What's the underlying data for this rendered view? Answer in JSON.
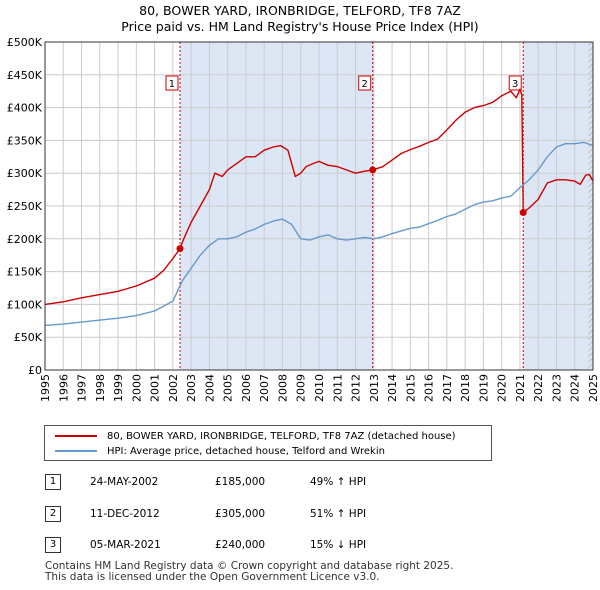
{
  "title_line1": "80, BOWER YARD, IRONBRIDGE, TELFORD, TF8 7AZ",
  "title_line2": "Price paid vs. HM Land Registry's House Price Index (HPI)",
  "colors": {
    "property": "#cc0000",
    "hpi": "#6699cc",
    "shade": "#dde6f4",
    "grid": "#cccccc"
  },
  "legend": {
    "property_label": "80, BOWER YARD, IRONBRIDGE, TELFORD, TF8 7AZ (detached house)",
    "hpi_label": "HPI: Average price, detached house, Telford and Wrekin"
  },
  "transactions": [
    {
      "num": "1",
      "date": "24-MAY-2002",
      "price": "£185,000",
      "hpi": "49% ↑ HPI",
      "x": 2002.39,
      "value": 185000
    },
    {
      "num": "2",
      "date": "11-DEC-2012",
      "price": "£305,000",
      "hpi": "51% ↑ HPI",
      "x": 2012.94,
      "value": 305000
    },
    {
      "num": "3",
      "date": "05-MAR-2021",
      "price": "£240,000",
      "hpi": "15% ↓ HPI",
      "x": 2021.18,
      "value": 240000
    }
  ],
  "footer": {
    "line1": "Contains HM Land Registry data © Crown copyright and database right 2025.",
    "line2": "This data is licensed under the Open Government Licence v3.0."
  },
  "chart_data": {
    "type": "line",
    "title": "80, BOWER YARD, IRONBRIDGE, TELFORD, TF8 7AZ",
    "subtitle": "Price paid vs. HM Land Registry's House Price Index (HPI)",
    "xlabel": "",
    "ylabel": "",
    "xlim": [
      1995,
      2025
    ],
    "ylim": [
      0,
      500000
    ],
    "y_ticks": [
      0,
      50000,
      100000,
      150000,
      200000,
      250000,
      300000,
      350000,
      400000,
      450000,
      500000
    ],
    "y_tick_labels": [
      "£0",
      "£50K",
      "£100K",
      "£150K",
      "£200K",
      "£250K",
      "£300K",
      "£350K",
      "£400K",
      "£450K",
      "£500K"
    ],
    "x_ticks": [
      1995,
      1996,
      1997,
      1998,
      1999,
      2000,
      2001,
      2002,
      2003,
      2004,
      2005,
      2006,
      2007,
      2008,
      2009,
      2010,
      2011,
      2012,
      2013,
      2014,
      2015,
      2016,
      2017,
      2018,
      2019,
      2020,
      2021,
      2022,
      2023,
      2024,
      2025
    ],
    "shaded_ranges": [
      [
        2002.39,
        2012.94
      ],
      [
        2021.18,
        2025
      ]
    ],
    "hatched_range": [
      2024.75,
      2025
    ],
    "series": [
      {
        "name": "80, BOWER YARD, IRONBRIDGE, TELFORD, TF8 7AZ (detached house)",
        "x": [
          1995,
          1996,
          1997,
          1998,
          1999,
          2000,
          2001,
          2001.5,
          2002,
          2002.39,
          2002.6,
          2003,
          2003.5,
          2004,
          2004.3,
          2004.7,
          2005,
          2005.5,
          2006,
          2006.5,
          2007,
          2007.5,
          2007.9,
          2008.3,
          2008.7,
          2009,
          2009.3,
          2009.7,
          2010,
          2010.5,
          2011,
          2011.5,
          2012,
          2012.5,
          2012.94,
          2013.5,
          2014,
          2014.5,
          2015,
          2015.5,
          2016,
          2016.5,
          2017,
          2017.5,
          2018,
          2018.5,
          2019,
          2019.5,
          2020,
          2020.5,
          2020.8,
          2021.0,
          2021.1,
          2021.18,
          2021.5,
          2022,
          2022.5,
          2023,
          2023.5,
          2024,
          2024.3,
          2024.6,
          2024.8,
          2025
        ],
        "values": [
          100000,
          104000,
          110000,
          115000,
          120000,
          128000,
          140000,
          152000,
          170000,
          185000,
          200000,
          225000,
          250000,
          275000,
          300000,
          295000,
          305000,
          315000,
          325000,
          325000,
          335000,
          340000,
          342000,
          335000,
          295000,
          300000,
          310000,
          315000,
          318000,
          312000,
          310000,
          305000,
          300000,
          303000,
          305000,
          310000,
          320000,
          330000,
          336000,
          341000,
          347000,
          352000,
          366000,
          381000,
          393000,
          400000,
          403000,
          408000,
          418000,
          425000,
          415000,
          428000,
          420000,
          240000,
          247000,
          260000,
          285000,
          290000,
          290000,
          288000,
          283000,
          297000,
          298000,
          288000
        ]
      },
      {
        "name": "HPI: Average price, detached house, Telford and Wrekin",
        "x": [
          1995,
          1996,
          1997,
          1998,
          1999,
          2000,
          2001,
          2002,
          2002.5,
          2003,
          2003.5,
          2004,
          2004.5,
          2005,
          2005.5,
          2006,
          2006.5,
          2007,
          2007.5,
          2008,
          2008.5,
          2009,
          2009.5,
          2010,
          2010.5,
          2011,
          2011.5,
          2012,
          2012.5,
          2013,
          2013.5,
          2014,
          2014.5,
          2015,
          2015.5,
          2016,
          2016.5,
          2017,
          2017.5,
          2018,
          2018.5,
          2019,
          2019.5,
          2020,
          2020.5,
          2021,
          2021.5,
          2022,
          2022.5,
          2023,
          2023.5,
          2024,
          2024.5,
          2025
        ],
        "values": [
          68000,
          70000,
          73000,
          76000,
          79000,
          83000,
          90000,
          105000,
          135000,
          155000,
          175000,
          190000,
          200000,
          200000,
          203000,
          210000,
          215000,
          222000,
          227000,
          230000,
          222000,
          200000,
          198000,
          203000,
          206000,
          200000,
          198000,
          200000,
          202000,
          200000,
          203000,
          208000,
          212000,
          216000,
          218000,
          223000,
          228000,
          234000,
          238000,
          245000,
          252000,
          256000,
          258000,
          262000,
          265000,
          278000,
          290000,
          305000,
          325000,
          340000,
          345000,
          345000,
          347000,
          342000
        ]
      }
    ]
  }
}
